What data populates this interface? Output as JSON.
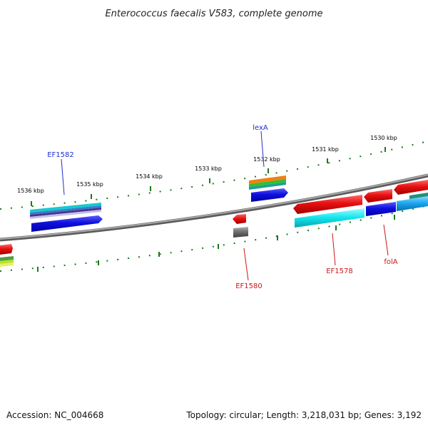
{
  "title": "Enterococcus faecalis V583, complete genome",
  "footer": {
    "accession": "Accession: NC_004668",
    "summary": "Topology: circular; Length: 3,218,031 bp; Genes: 3,192"
  },
  "scale_labels": [
    "1536 kbp",
    "1535 kbp",
    "1534 kbp",
    "1533 kbp",
    "1532 kbp",
    "1531 kbp",
    "1530 kbp"
  ],
  "gene_labels": {
    "EF1582": "EF1582",
    "lexA": "lexA",
    "EF1580": "EF1580",
    "EF1578": "EF1578",
    "folA": "folA"
  },
  "colors": {
    "backbone": "#8a8a8a",
    "tick": "#1a7a1a",
    "label_blue": "#1f2fd0",
    "label_red": "#c81818",
    "gene_red": "#e01010",
    "gene_blue": "#1010e0",
    "gene_cyan": "#18e8f0",
    "gene_orange": "#f08010",
    "gene_green": "#30c030",
    "gene_gray": "#707070"
  }
}
